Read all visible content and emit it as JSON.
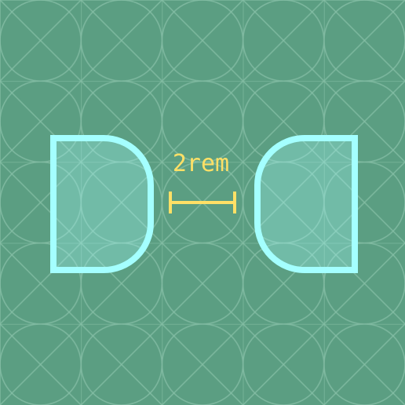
{
  "diagram": {
    "gap_label": "2rem",
    "colors": {
      "background": "#5b9e82",
      "grid_pattern": "#7db99e",
      "shape_outline": "#a4ffff",
      "measure": "#ffe066"
    },
    "shapes": [
      {
        "name": "rounded-right-box"
      },
      {
        "name": "rounded-left-box"
      }
    ]
  }
}
